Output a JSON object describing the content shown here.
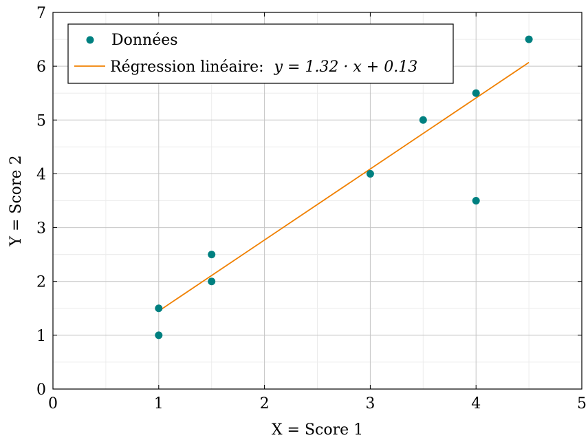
{
  "chart_data": {
    "type": "scatter",
    "xlabel": "X = Score 1",
    "ylabel": "Y = Score 2",
    "xlim": [
      0,
      5
    ],
    "ylim": [
      0,
      7
    ],
    "xticks": [
      0,
      1,
      2,
      3,
      4,
      5
    ],
    "yticks": [
      0,
      1,
      2,
      3,
      4,
      5,
      6,
      7
    ],
    "grid": true,
    "minor_grid": true,
    "legend_position": "top-left",
    "series": [
      {
        "name": "Données",
        "kind": "scatter",
        "color": "#008080",
        "points": [
          {
            "x": 1,
            "y": 1
          },
          {
            "x": 1,
            "y": 1.5
          },
          {
            "x": 1.5,
            "y": 2
          },
          {
            "x": 1.5,
            "y": 2.5
          },
          {
            "x": 3,
            "y": 4
          },
          {
            "x": 3.5,
            "y": 5
          },
          {
            "x": 4,
            "y": 3.5
          },
          {
            "x": 4,
            "y": 5.5
          },
          {
            "x": 4.5,
            "y": 6.5
          }
        ]
      },
      {
        "name": "Régression linéaire:",
        "equation": "y = 1.32 · x + 0.13",
        "kind": "line",
        "color": "#f08000",
        "slope": 1.32,
        "intercept": 0.13,
        "x_range": [
          1,
          4.5
        ]
      }
    ]
  }
}
